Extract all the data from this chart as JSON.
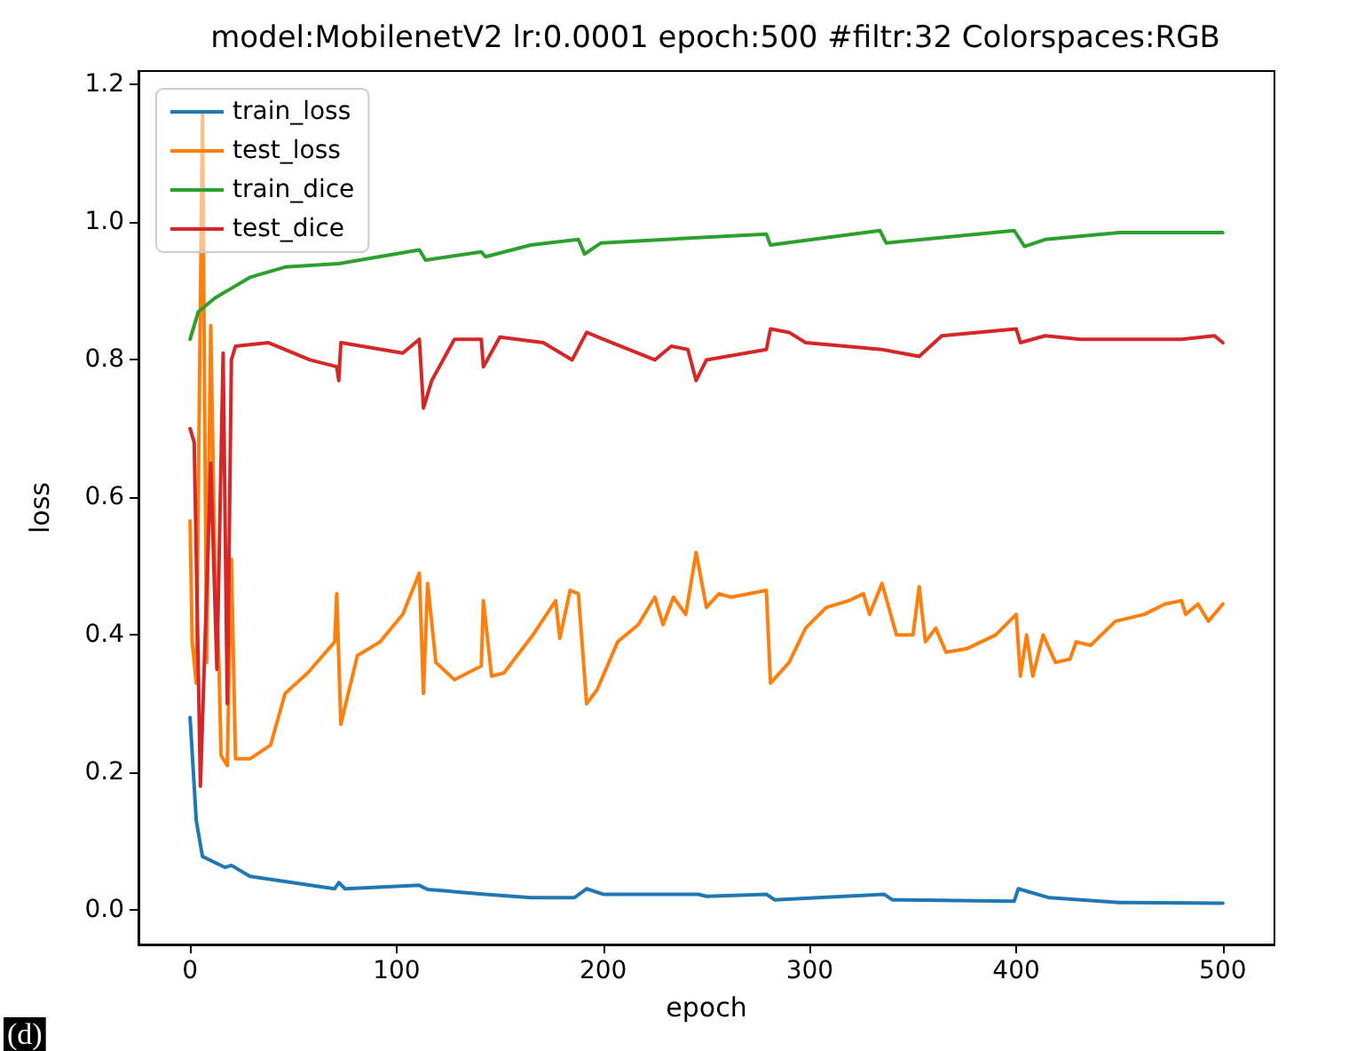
{
  "chart_data": {
    "type": "line",
    "title": "model:MobilenetV2 lr:0.0001 epoch:500 #filtr:32 Colorspaces:RGB",
    "xlabel": "epoch",
    "ylabel": "loss",
    "xlim": [
      -25,
      525
    ],
    "xticks": [
      0,
      100,
      200,
      300,
      400,
      500
    ],
    "ylim": [
      -0.05,
      1.22
    ],
    "yticks": [
      {
        "value": 0,
        "label": "0.0"
      },
      {
        "value": 0.2,
        "label": "0.2"
      },
      {
        "value": 0.4,
        "label": "0.4"
      },
      {
        "value": 0.6,
        "label": "0.6"
      },
      {
        "value": 0.8,
        "label": "0.8"
      },
      {
        "value": 1.0,
        "label": "1.0"
      },
      {
        "value": 1.2,
        "label": "1.2"
      }
    ],
    "grid": false,
    "legend": "top left",
    "marker": "none",
    "line_style": "solid",
    "annotations": [
      "(d)"
    ],
    "series": [
      {
        "name": "train_loss",
        "color": "#1f77b4",
        "x": [
          0,
          3,
          6,
          17,
          20,
          29,
          70,
          72,
          75,
          111,
          115,
          143,
          165,
          186,
          192,
          200,
          246,
          250,
          279,
          283,
          336,
          340,
          399,
          401,
          416,
          450,
          500
        ],
        "values": [
          0.28,
          0.13,
          0.078,
          0.062,
          0.065,
          0.049,
          0.031,
          0.04,
          0.031,
          0.036,
          0.03,
          0.023,
          0.018,
          0.018,
          0.031,
          0.023,
          0.023,
          0.02,
          0.023,
          0.015,
          0.023,
          0.015,
          0.013,
          0.031,
          0.018,
          0.011,
          0.01
        ]
      },
      {
        "name": "test_loss",
        "color": "#ff7f0e",
        "x": [
          0,
          1,
          3,
          6,
          8,
          10,
          12,
          14,
          15,
          18,
          20,
          22,
          29,
          39,
          46,
          57,
          70,
          71,
          73,
          81,
          92,
          103,
          111,
          113,
          115,
          119,
          128,
          141,
          142,
          146,
          152,
          166,
          177,
          179,
          184,
          188,
          192,
          197,
          207,
          217,
          225,
          229,
          234,
          240,
          245,
          250,
          256,
          262,
          279,
          281,
          290,
          298,
          308,
          319,
          326,
          329,
          335,
          342,
          350,
          353,
          356,
          361,
          366,
          376,
          390,
          400,
          402,
          405,
          408,
          413,
          419,
          426,
          429,
          436,
          448,
          462,
          472,
          480,
          482,
          488,
          493,
          500
        ],
        "values": [
          0.566,
          0.39,
          0.33,
          1.16,
          0.36,
          0.85,
          0.5,
          0.355,
          0.225,
          0.21,
          0.51,
          0.22,
          0.22,
          0.24,
          0.315,
          0.345,
          0.39,
          0.46,
          0.27,
          0.37,
          0.39,
          0.43,
          0.49,
          0.315,
          0.475,
          0.36,
          0.335,
          0.355,
          0.45,
          0.34,
          0.345,
          0.4,
          0.45,
          0.395,
          0.465,
          0.46,
          0.3,
          0.32,
          0.39,
          0.415,
          0.455,
          0.415,
          0.455,
          0.43,
          0.52,
          0.44,
          0.46,
          0.455,
          0.465,
          0.33,
          0.36,
          0.41,
          0.44,
          0.45,
          0.46,
          0.43,
          0.475,
          0.4,
          0.4,
          0.47,
          0.39,
          0.41,
          0.375,
          0.38,
          0.4,
          0.43,
          0.34,
          0.4,
          0.34,
          0.4,
          0.36,
          0.365,
          0.39,
          0.385,
          0.42,
          0.43,
          0.445,
          0.45,
          0.43,
          0.445,
          0.42,
          0.445
        ]
      },
      {
        "name": "train_dice",
        "color": "#2ca02c",
        "x": [
          0,
          4,
          12,
          29,
          46,
          72,
          111,
          114,
          141,
          143,
          165,
          188,
          191,
          199,
          279,
          281,
          334,
          337,
          399,
          404,
          414,
          450,
          500
        ],
        "values": [
          0.83,
          0.87,
          0.89,
          0.92,
          0.935,
          0.94,
          0.96,
          0.945,
          0.957,
          0.95,
          0.967,
          0.975,
          0.954,
          0.97,
          0.983,
          0.967,
          0.988,
          0.97,
          0.988,
          0.965,
          0.975,
          0.985,
          0.985
        ]
      },
      {
        "name": "test_dice",
        "color": "#d62728",
        "x": [
          0,
          2,
          5,
          10,
          13,
          16,
          18,
          20,
          22,
          38,
          58,
          71,
          72,
          73,
          103,
          111,
          113,
          117,
          128,
          141,
          142,
          150,
          171,
          185,
          192,
          200,
          225,
          233,
          241,
          245,
          250,
          279,
          281,
          290,
          298,
          335,
          353,
          364,
          400,
          402,
          414,
          431,
          480,
          496,
          500
        ],
        "values": [
          0.7,
          0.68,
          0.18,
          0.65,
          0.35,
          0.81,
          0.3,
          0.8,
          0.82,
          0.825,
          0.8,
          0.79,
          0.77,
          0.825,
          0.81,
          0.83,
          0.73,
          0.77,
          0.83,
          0.83,
          0.79,
          0.833,
          0.825,
          0.8,
          0.84,
          0.83,
          0.8,
          0.82,
          0.815,
          0.77,
          0.8,
          0.815,
          0.845,
          0.84,
          0.825,
          0.815,
          0.805,
          0.835,
          0.845,
          0.825,
          0.835,
          0.83,
          0.83,
          0.835,
          0.825
        ]
      }
    ]
  }
}
